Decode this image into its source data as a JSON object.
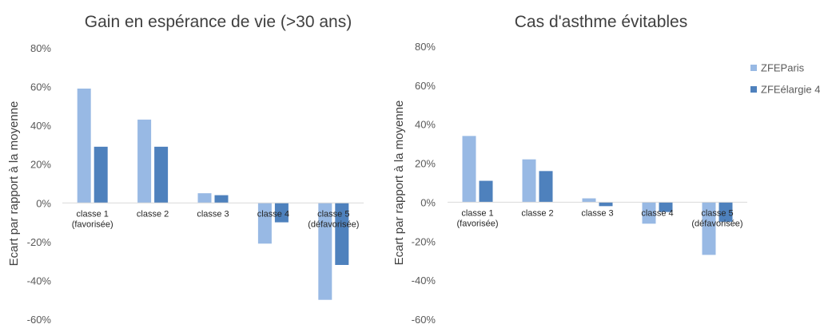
{
  "legend": [
    {
      "name": "ZFEParis",
      "color": "#98b9e4"
    },
    {
      "name": "ZFEélargie 4",
      "color": "#4e81bd"
    }
  ],
  "chart_data": [
    {
      "type": "bar",
      "title": "Gain en espérance de vie (>30 ans)",
      "ylabel": "Ecart par rapport à la moyenne",
      "xlabel": "",
      "categories": [
        [
          "classe 1",
          "(favorisée)"
        ],
        [
          "classe 2"
        ],
        [
          "classe 3"
        ],
        [
          "classe 4"
        ],
        [
          "classe 5",
          "(défavorisée)"
        ]
      ],
      "ylim": [
        -60,
        80
      ],
      "yticks": [
        80,
        60,
        40,
        20,
        0,
        -20,
        -40,
        -60
      ],
      "ytick_labels": [
        "80%",
        "60%",
        "40%",
        "20%",
        "0%",
        "-20%",
        "-40%",
        "-60%"
      ],
      "series": [
        {
          "name": "ZFEParis",
          "values": [
            59,
            43,
            5,
            -21,
            -50
          ]
        },
        {
          "name": "ZFEélargie 4",
          "values": [
            29,
            29,
            4,
            -10,
            -32
          ]
        }
      ],
      "grid": false
    },
    {
      "type": "bar",
      "title": "Cas d'asthme évitables",
      "ylabel": "Ecart par rapport à la moyenne",
      "xlabel": "",
      "categories": [
        [
          "classe 1",
          "(favorisée)"
        ],
        [
          "classe 2"
        ],
        [
          "classe 3"
        ],
        [
          "classe 4"
        ],
        [
          "classe 5",
          "(défavorisée)"
        ]
      ],
      "ylim": [
        -60,
        80
      ],
      "yticks": [
        80,
        60,
        40,
        20,
        0,
        -20,
        -40,
        -60
      ],
      "ytick_labels": [
        "80%",
        "60%",
        "40%",
        "20%",
        "0%",
        "-20%",
        "-40%",
        "-60%"
      ],
      "series": [
        {
          "name": "ZFEParis",
          "values": [
            34,
            22,
            2,
            -11,
            -27
          ]
        },
        {
          "name": "ZFEélargie 4",
          "values": [
            11,
            16,
            -2,
            -5,
            -10
          ]
        }
      ],
      "grid": false,
      "legend_position": "right"
    }
  ]
}
